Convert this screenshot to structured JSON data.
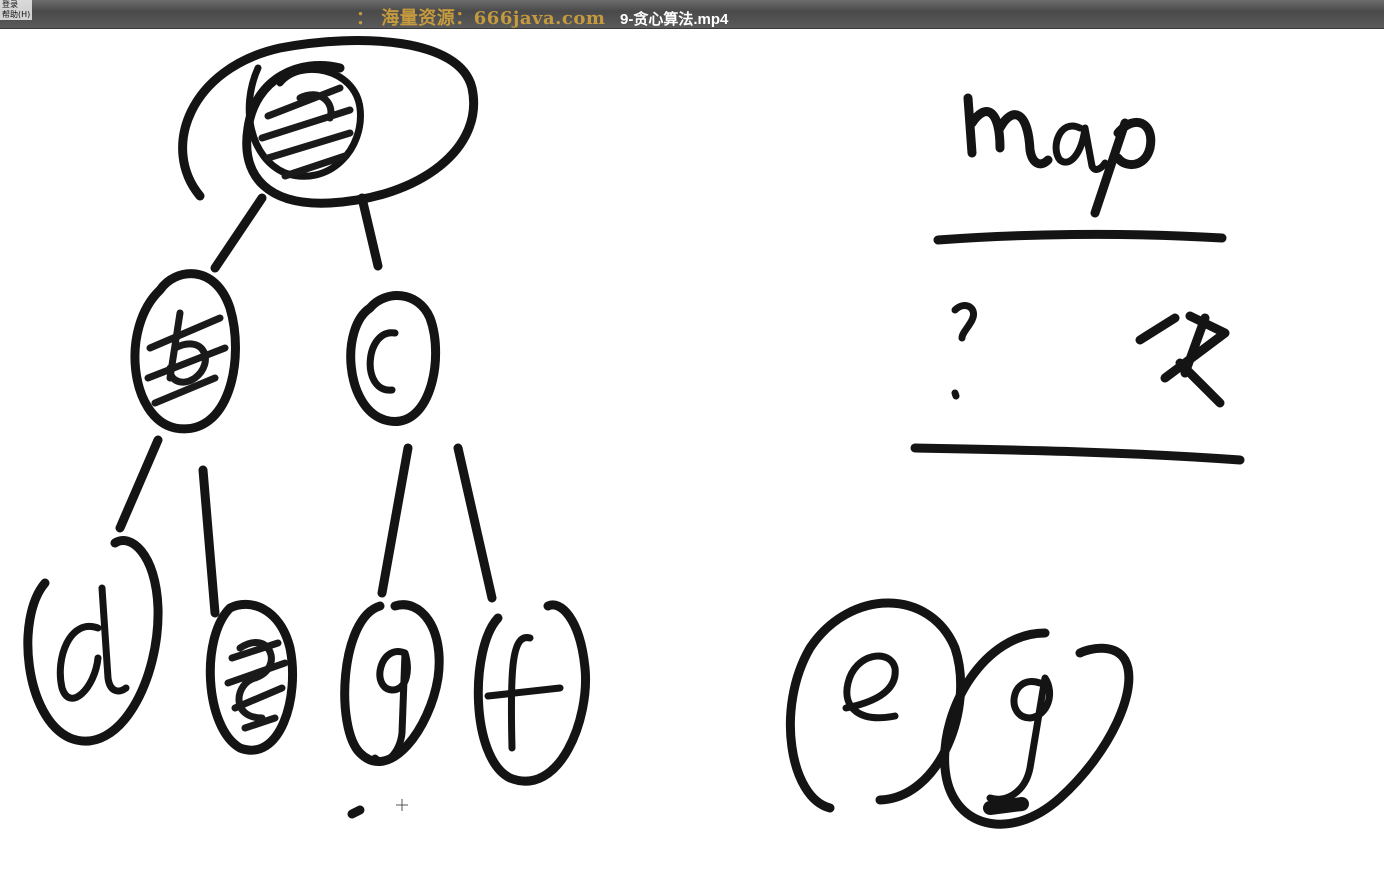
{
  "window": {
    "menu_item_1": "登录",
    "menu_item_2": "帮助(H)",
    "watermark": "： 海量资源：666java.com",
    "file_title": "9-贪心算法.mp4"
  },
  "whiteboard": {
    "tree_nodes": [
      "a",
      "b",
      "c",
      "d",
      "e",
      "g",
      "f"
    ],
    "map_label": "map",
    "map_row_left": "?",
    "map_row_right": "K",
    "aside_nodes": [
      "e",
      "g"
    ]
  }
}
